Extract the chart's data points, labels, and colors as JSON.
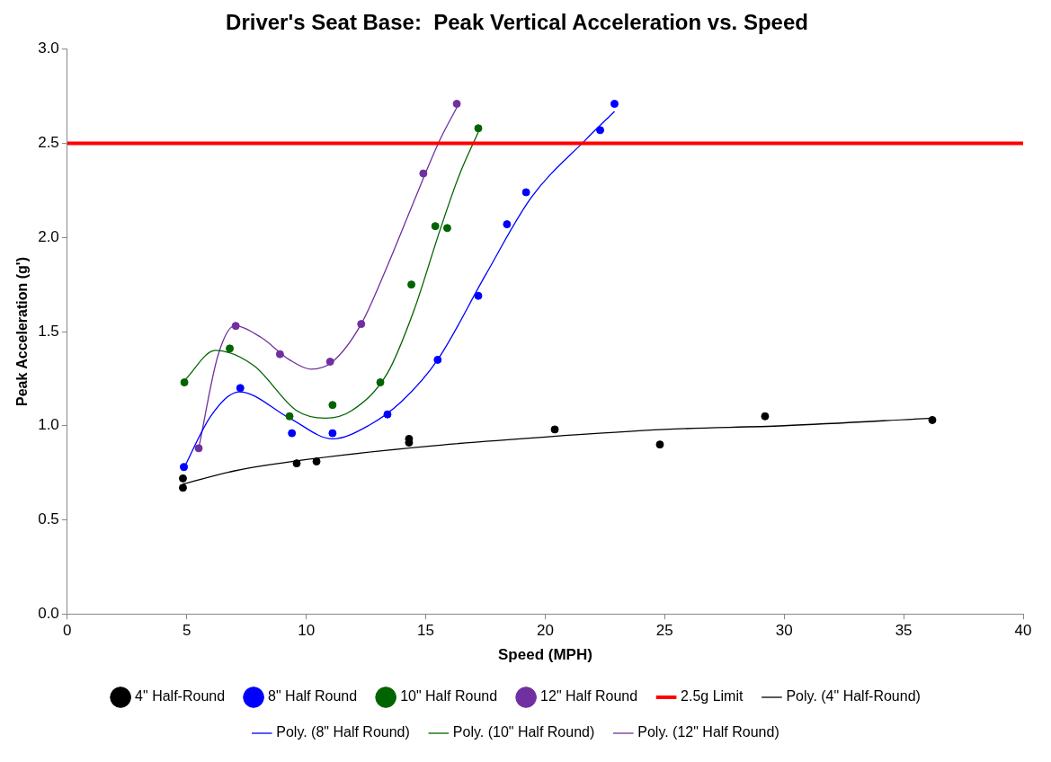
{
  "chart_data": {
    "type": "scatter",
    "title": "Driver's Seat Base:  Peak Vertical Acceleration vs. Speed",
    "xlabel": "Speed (MPH)",
    "ylabel": "Peak Acceleration (g')",
    "xlim": [
      0,
      40
    ],
    "xticks": [
      0,
      5,
      10,
      15,
      20,
      25,
      30,
      35,
      40
    ],
    "ylim": [
      0,
      3
    ],
    "yticks": [
      {
        "value": 0,
        "label": "0.0"
      },
      {
        "value": 0.5,
        "label": "0.5"
      },
      {
        "value": 1,
        "label": "1.0"
      },
      {
        "value": 1.5,
        "label": "1.5"
      },
      {
        "value": 2,
        "label": "2.0"
      },
      {
        "value": 2.5,
        "label": "2.5"
      },
      {
        "value": 3,
        "label": "3.0"
      }
    ],
    "grid": false,
    "legend": "bottom",
    "marker": "circle",
    "series": [
      {
        "name": "4\" Half-Round",
        "color": "#000000",
        "x": [
          4.84,
          4.84,
          9.6,
          10.43,
          14.3,
          14.3,
          20.4,
          24.8,
          29.2,
          36.2
        ],
        "values": [
          0.67,
          0.72,
          0.8,
          0.81,
          0.93,
          0.91,
          0.98,
          0.9,
          1.05,
          1.03
        ]
      },
      {
        "name": "8\" Half Round",
        "color": "#0000ff",
        "x": [
          4.88,
          7.24,
          9.4,
          11.1,
          13.4,
          15.5,
          17.2,
          18.4,
          19.2,
          22.3,
          22.9
        ],
        "values": [
          0.78,
          1.2,
          0.96,
          0.96,
          1.06,
          1.35,
          1.69,
          2.07,
          2.24,
          2.57,
          2.71
        ]
      },
      {
        "name": "10\" Half Round",
        "color": "#006400",
        "x": [
          4.9,
          6.8,
          9.3,
          11.1,
          13.1,
          14.4,
          15.4,
          15.9,
          17.2
        ],
        "values": [
          1.23,
          1.41,
          1.05,
          1.11,
          1.23,
          1.75,
          2.06,
          2.05,
          2.58
        ]
      },
      {
        "name": "12\" Half Round",
        "color": "#7030a0",
        "x": [
          5.5,
          7.05,
          8.9,
          11.0,
          12.3,
          14.9,
          16.3
        ],
        "values": [
          0.88,
          1.53,
          1.38,
          1.34,
          1.54,
          2.34,
          2.71
        ]
      },
      {
        "name": "Poly. (4\" Half-Round)",
        "type": "line",
        "marker": "none",
        "color": "#000000",
        "x": [
          4.84,
          7,
          10,
          15,
          20,
          25,
          30,
          36.2
        ],
        "values": [
          0.69,
          0.76,
          0.82,
          0.89,
          0.94,
          0.98,
          1.0,
          1.04
        ]
      },
      {
        "name": "Poly. (8\" Half Round)",
        "type": "line",
        "marker": "none",
        "color": "#0000ff",
        "x": [
          4.9,
          6,
          7.2,
          9.3,
          11.1,
          12.6,
          14,
          15.5,
          17.5,
          19.4,
          21.7,
          22.9
        ],
        "values": [
          0.78,
          1.05,
          1.18,
          1.04,
          0.93,
          1.0,
          1.13,
          1.35,
          1.8,
          2.21,
          2.52,
          2.67
        ]
      },
      {
        "name": "Poly. (10\" Half Round)",
        "type": "line",
        "marker": "none",
        "color": "#006400",
        "x": [
          4.9,
          6.2,
          7.8,
          9.6,
          10.8,
          11.9,
          13.4,
          14.5,
          15.6,
          16.4,
          17.2
        ],
        "values": [
          1.24,
          1.4,
          1.32,
          1.08,
          1.04,
          1.08,
          1.28,
          1.61,
          2.04,
          2.33,
          2.56
        ]
      },
      {
        "name": "Poly. (12\" Half Round)",
        "type": "line",
        "marker": "none",
        "color": "#7030a0",
        "x": [
          5.5,
          6.3,
          7.0,
          8.1,
          9.3,
          10.2,
          11.1,
          12.3,
          13.4,
          14.5,
          15.6,
          16.3
        ],
        "values": [
          0.88,
          1.37,
          1.53,
          1.47,
          1.35,
          1.3,
          1.34,
          1.54,
          1.85,
          2.19,
          2.52,
          2.69
        ]
      }
    ],
    "ref_lines": [
      {
        "axis": "y",
        "value": 2.5,
        "label": "2.5g Limit",
        "color": "#ff0000",
        "line_style": "solid"
      }
    ]
  }
}
